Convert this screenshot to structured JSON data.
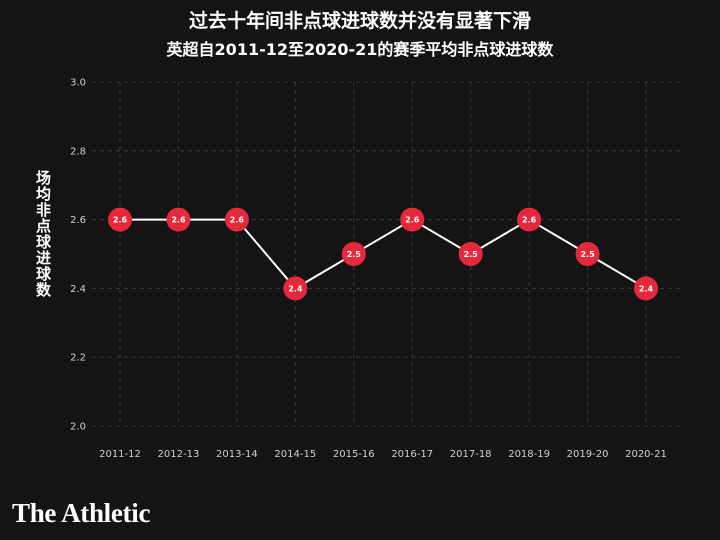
{
  "header": {
    "title": "过去十年间非点球进球数并没有显著下滑",
    "subtitle": "英超自2011-12至2020-21的赛季平均非点球进球数"
  },
  "brand": {
    "name": "The Athletic"
  },
  "colors": {
    "background": "#141414",
    "marker": "#e5283c",
    "line": "#ffffff",
    "grid": "#3a3a3a"
  },
  "chart_data": {
    "type": "line",
    "title": "过去十年间非点球进球数并没有显著下滑",
    "subtitle": "英超自2011-12至2020-21的赛季平均非点球进球数",
    "xlabel": "",
    "ylabel": "场均非点球进球数",
    "categories": [
      "2011-12",
      "2012-13",
      "2013-14",
      "2014-15",
      "2015-16",
      "2016-17",
      "2017-18",
      "2018-19",
      "2019-20",
      "2020-21"
    ],
    "values": [
      2.6,
      2.6,
      2.6,
      2.4,
      2.5,
      2.6,
      2.5,
      2.6,
      2.5,
      2.4
    ],
    "point_labels": [
      "2.6",
      "2.6",
      "2.6",
      "2.4",
      "2.5",
      "2.6",
      "2.5",
      "2.6",
      "2.5",
      "2.4"
    ],
    "ylim": [
      2.0,
      3.0
    ],
    "yticks": [
      2.0,
      2.2,
      2.4,
      2.6,
      2.8,
      3.0
    ],
    "ytick_labels": [
      "2.0",
      "2.2",
      "2.4",
      "2.6",
      "2.8",
      "3.0"
    ],
    "grid": true,
    "legend": "none"
  }
}
